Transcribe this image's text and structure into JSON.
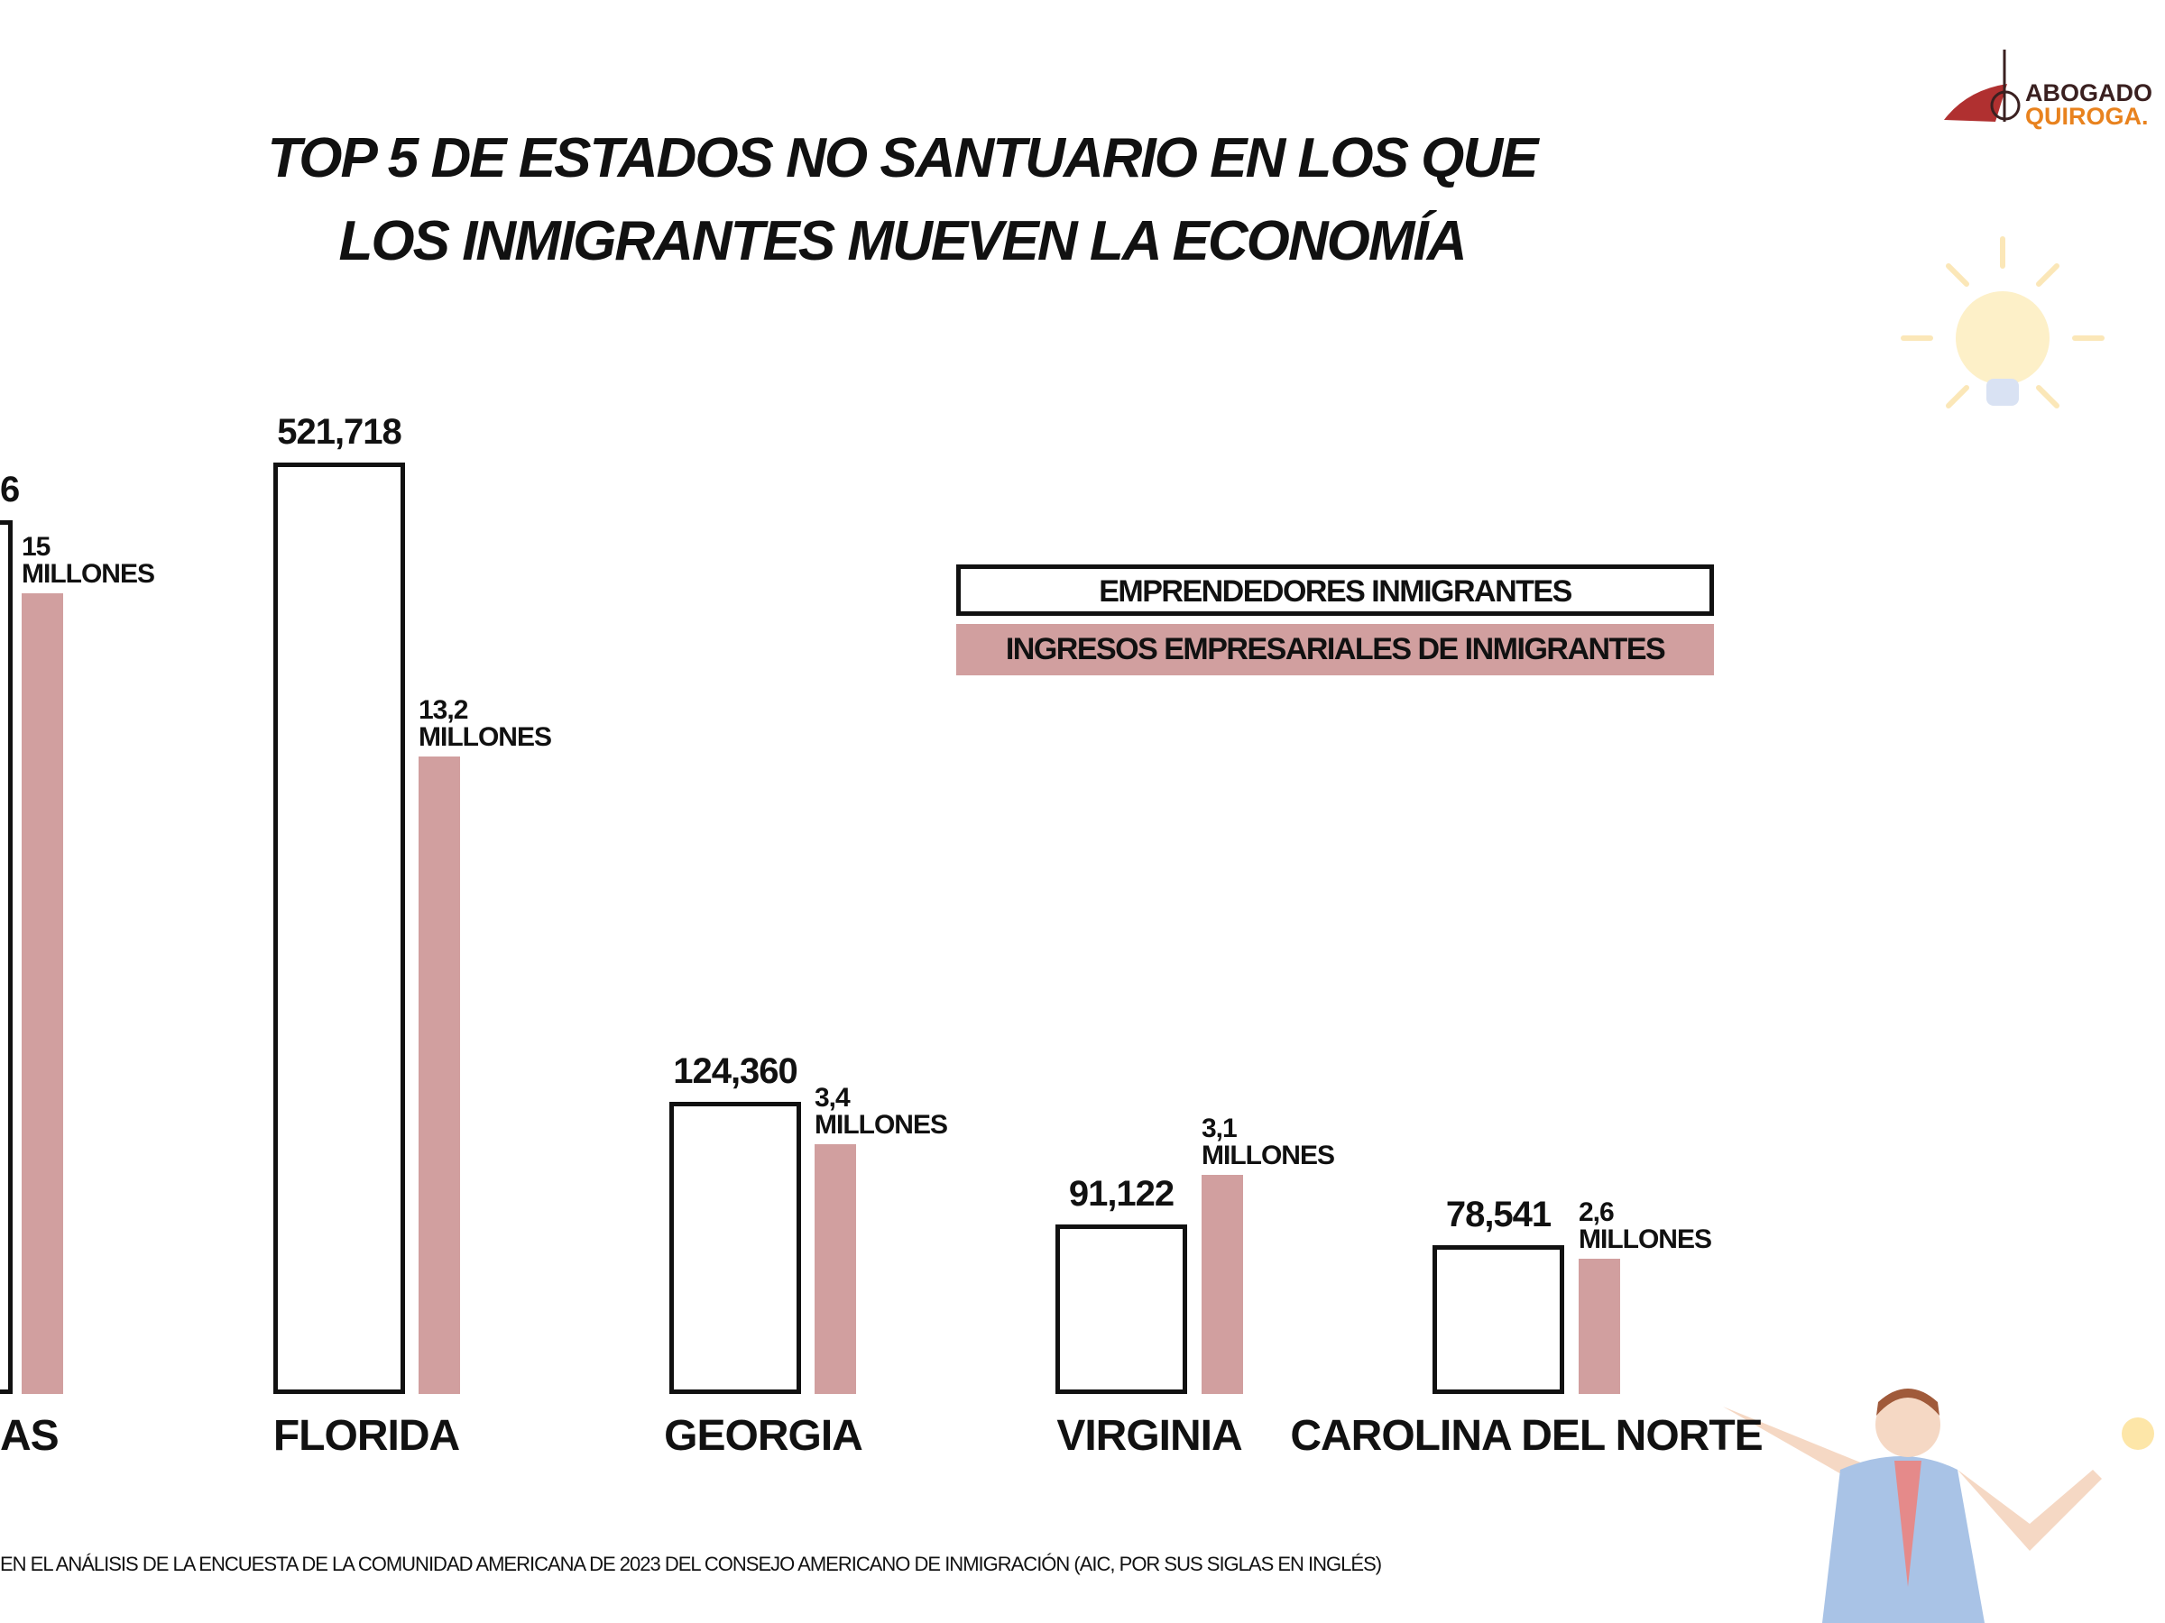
{
  "title_lines": [
    "TOP 5 DE ESTADOS NO SANTUARIO EN LOS QUE",
    "LOS INMIGRANTES MUEVEN LA ECONOMÍA"
  ],
  "logo": {
    "line1": "ABOGADO",
    "line2": "QUIROGA."
  },
  "colors": {
    "outline": "#111111",
    "pink": "#d19f9f",
    "logo_red": "#b03030",
    "logo_orange": "#e8821e"
  },
  "chart_data": {
    "type": "bar",
    "title": "TOP 5 DE ESTADOS NO SANTUARIO EN LOS QUE LOS INMIGRANTES MUEVEN LA ECONOMÍA",
    "categories": [
      "AS",
      "FLORIDA",
      "GEORGIA",
      "VIRGINIA",
      "CAROLINA DEL NORTE"
    ],
    "series": [
      {
        "name": "EMPRENDEDORES INMIGRANTES",
        "style": "outline",
        "values": [
          null,
          521718,
          124360,
          91122,
          78541
        ],
        "labels": [
          "6",
          "521,718",
          "124,360",
          "91,122",
          "78,541"
        ]
      },
      {
        "name": "INGRESOS EMPRESARIALES DE INMIGRANTES",
        "style": "pink",
        "values": [
          15,
          13.2,
          3.4,
          3.1,
          2.6
        ],
        "labels_top": [
          "15",
          "13,2",
          "3,4",
          "3,1",
          "2,6"
        ],
        "labels_unit": "MILLONES"
      }
    ],
    "legend": "center-right",
    "grid": false,
    "axes_visible": false
  },
  "footnote": "EN EL ANÁLISIS DE LA ENCUESTA DE LA COMUNIDAD AMERICANA DE 2023 DEL CONSEJO AMERICANO DE INMIGRACIÓN (AIC, POR SUS SIGLAS EN INGLÉS)"
}
